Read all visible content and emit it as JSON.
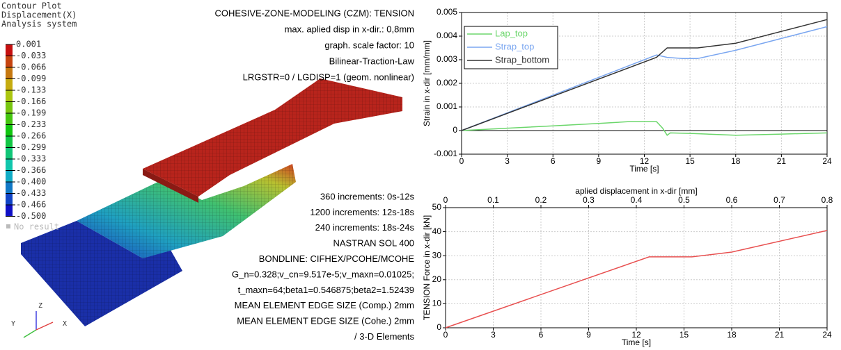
{
  "contour": {
    "title": [
      "Contour Plot",
      "Displacement(X)",
      "Analysis system"
    ],
    "levels": [
      "0.001",
      "-0.033",
      "-0.066",
      "-0.099",
      "-0.133",
      "-0.166",
      "-0.199",
      "-0.233",
      "-0.266",
      "-0.299",
      "-0.333",
      "-0.366",
      "-0.400",
      "-0.433",
      "-0.466",
      "-0.500"
    ],
    "no_result": "No result"
  },
  "triad": {
    "z": "Z",
    "y": "Y",
    "x": "X"
  },
  "annotations": {
    "top": [
      "COHESIVE-ZONE-MODELING (CZM): TENSION",
      "max. aplied disp in x-dir.: 0,8mm",
      "graph. scale factor: 10",
      "Bilinear-Traction-Law",
      "LRGSTR=0 / LGDISP=1 (geom. nonlinear)"
    ],
    "bottom": [
      "360 increments: 0s-12s",
      "1200 increments: 12s-18s",
      "240 increments: 18s-24s",
      "NASTRAN SOL 400",
      "BONDLINE: CIFHEX/PCOHE/MCOHE",
      "G_n=0.328;v_cn=9.517e-5;v_maxn=0.01025;",
      "t_maxn=64;beta1=0.546875;beta2=1.52439",
      "MEAN ELEMENT EDGE SIZE (Comp.) 2mm",
      "MEAN ELEMENT EDGE SIZE (Cohe.) 2mm",
      "/ 3-D Elements"
    ]
  },
  "chart_data": [
    {
      "type": "line",
      "x_label": "Time [s]",
      "y_label": "Strain in x-dir [mm/mm]",
      "xlim": [
        0,
        24
      ],
      "xticks": [
        0,
        3,
        6,
        9,
        12,
        15,
        18,
        21,
        24
      ],
      "ylim": [
        -0.001,
        0.005
      ],
      "yticks": [
        -0.001,
        0,
        0.001,
        0.002,
        0.003,
        0.004,
        0.005
      ],
      "grid": true,
      "zero_line": true,
      "legend": "upper left",
      "series": [
        {
          "name": "Lap_top",
          "color": "#6bd66b",
          "x": [
            0,
            3,
            6,
            9,
            11,
            12.8,
            13.2,
            13.5,
            13.7,
            15,
            18,
            21,
            24
          ],
          "values": [
            0,
            0.0001,
            0.0002,
            0.0003,
            0.00038,
            0.00038,
            0.0001,
            -0.0002,
            -0.0001,
            -0.00012,
            -0.0002,
            -0.00015,
            -0.0001
          ]
        },
        {
          "name": "Strap_top",
          "color": "#7aa6f0",
          "x": [
            0,
            12.8,
            13.5,
            14.5,
            15.5,
            18,
            21,
            24
          ],
          "values": [
            0,
            0.0032,
            0.0031,
            0.00305,
            0.00305,
            0.0034,
            0.0039,
            0.0044
          ]
        },
        {
          "name": "Strap_bottom",
          "color": "#333333",
          "x": [
            0,
            12.8,
            13.5,
            15.5,
            18,
            21,
            24
          ],
          "values": [
            0,
            0.0031,
            0.0035,
            0.0035,
            0.0037,
            0.0042,
            0.0047
          ]
        }
      ]
    },
    {
      "type": "line",
      "x_label": "Time [s]",
      "y_label": "TENSION Force in x-dir [kN]",
      "x2_label": "aplied displacement in x-dir [mm]",
      "xlim": [
        0,
        24
      ],
      "xticks": [
        0,
        3,
        6,
        9,
        12,
        15,
        18,
        21,
        24
      ],
      "x2lim": [
        0,
        0.8
      ],
      "x2ticks": [
        0,
        0.1,
        0.2,
        0.3,
        0.4,
        0.5,
        0.6,
        0.7,
        0.8
      ],
      "ylim": [
        0,
        50
      ],
      "yticks": [
        0,
        10,
        20,
        30,
        40,
        50
      ],
      "grid": true,
      "series": [
        {
          "color": "#e85050",
          "x": [
            0,
            12.8,
            15.5,
            18,
            24
          ],
          "values": [
            0,
            29.5,
            29.5,
            31.5,
            40.5
          ]
        }
      ]
    }
  ]
}
